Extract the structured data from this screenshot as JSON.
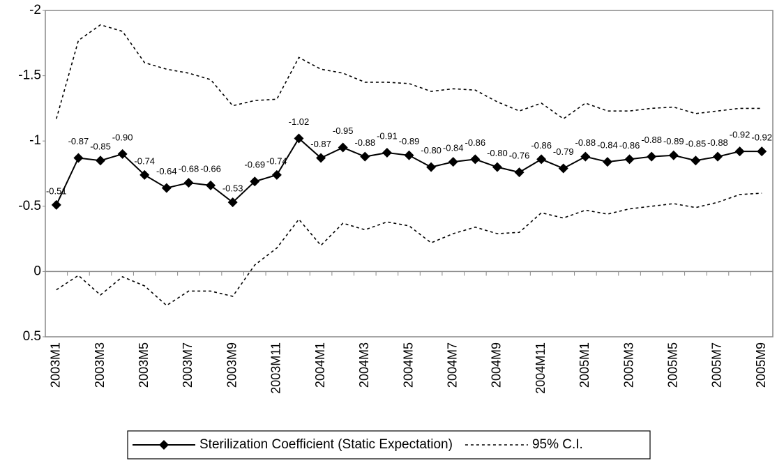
{
  "chart_data": {
    "type": "line",
    "categories": [
      "2003M1",
      null,
      "2003M3",
      null,
      "2003M5",
      null,
      "2003M7",
      null,
      "2003M9",
      null,
      "2003M11",
      null,
      "2004M1",
      null,
      "2004M3",
      null,
      "2004M5",
      null,
      "2004M7",
      null,
      "2004M9",
      null,
      "2004M11",
      null,
      "2005M1",
      null,
      "2005M3",
      null,
      "2005M5",
      null,
      "2005M7",
      null,
      "2005M9"
    ],
    "series": [
      {
        "name": "Sterilization Coefficient (Static Expectation)",
        "color": "#000000",
        "marker": "diamond",
        "values": [
          -0.51,
          -0.87,
          -0.85,
          -0.9,
          -0.74,
          -0.64,
          -0.68,
          -0.66,
          -0.53,
          -0.69,
          -0.74,
          -1.02,
          -0.87,
          -0.95,
          -0.88,
          -0.91,
          -0.89,
          -0.8,
          -0.84,
          -0.86,
          -0.8,
          -0.76,
          -0.86,
          -0.79,
          -0.88,
          -0.84,
          -0.86,
          -0.88,
          -0.89,
          -0.85,
          -0.88,
          -0.92,
          -0.92
        ],
        "value_labels": [
          "-0.51",
          "-0.87",
          "-0.85",
          "-0.90",
          "-0.74",
          "-0.64",
          "-0.68",
          "-0.66",
          "-0.53",
          "-0.69",
          "-0.74",
          "-1.02",
          "-0.87",
          "-0.95",
          "-0.88",
          "-0.91",
          "-0.89",
          "-0.80",
          "-0.84",
          "-0.86",
          "-0.80",
          "-0.76",
          "-0.86",
          "-0.79",
          "-0.88",
          "-0.84",
          "-0.86",
          "-0.88",
          "-0.89",
          "-0.85",
          "-0.88",
          "-0.92",
          "-0.92"
        ]
      },
      {
        "name": "95% C.I.",
        "color": "#000000",
        "dashed": true,
        "values": [
          -1.17,
          -1.77,
          -1.89,
          -1.84,
          -1.6,
          -1.55,
          -1.52,
          -1.47,
          -1.27,
          -1.31,
          -1.32,
          -1.64,
          -1.55,
          -1.52,
          -1.45,
          -1.45,
          -1.44,
          -1.38,
          -1.4,
          -1.39,
          -1.3,
          -1.23,
          -1.29,
          -1.17,
          -1.29,
          -1.23,
          -1.23,
          -1.25,
          -1.26,
          -1.21,
          -1.23,
          -1.25,
          -1.25
        ]
      },
      {
        "color": "#000000",
        "dashed": true,
        "values": [
          0.14,
          0.03,
          0.18,
          0.04,
          0.11,
          0.26,
          0.15,
          0.15,
          0.19,
          -0.05,
          -0.18,
          -0.4,
          -0.2,
          -0.37,
          -0.32,
          -0.38,
          -0.35,
          -0.22,
          -0.29,
          -0.34,
          -0.29,
          -0.3,
          -0.45,
          -0.41,
          -0.47,
          -0.44,
          -0.48,
          -0.5,
          -0.52,
          -0.49,
          -0.53,
          -0.59,
          -0.6
        ]
      }
    ],
    "ylim": [
      0.5,
      -2
    ],
    "yticks": [
      -2,
      -1.5,
      -1,
      -0.5,
      0,
      0.5
    ],
    "grid": false
  }
}
